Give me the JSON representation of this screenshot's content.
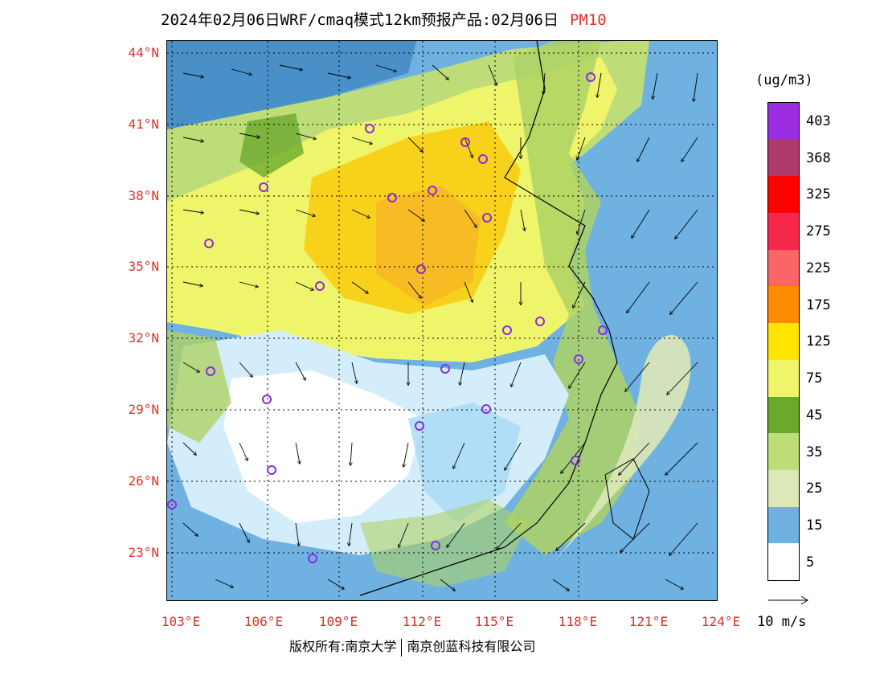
{
  "title": {
    "text": "2024年02月06日WRF/cmaq模式12km预报产品:02月06日",
    "pollutant": "PM10"
  },
  "map": {
    "lat_labels": [
      "44°N",
      "41°N",
      "38°N",
      "35°N",
      "32°N",
      "29°N",
      "26°N",
      "23°N"
    ],
    "lon_labels": [
      "103°E",
      "106°E",
      "109°E",
      "112°E",
      "115°E",
      "118°E",
      "121°E",
      "124°E"
    ]
  },
  "legend": {
    "unit": "(ug/m3)",
    "bins": [
      {
        "color": "#9a2ee0"
      },
      {
        "color": "#ad3a6b"
      },
      {
        "color": "#cf1b7f"
      },
      {
        "color": "#ff0000"
      },
      {
        "color": "#f5284b"
      },
      {
        "color": "#fc6565"
      },
      {
        "color": "#f0562a"
      },
      {
        "color": "#ff8c00"
      },
      {
        "color": "#f6aa2c"
      },
      {
        "color": "#f8d21a"
      },
      {
        "color": "#ffe600"
      },
      {
        "color": "#f1e07a"
      },
      {
        "color": "#eef56a"
      },
      {
        "color": "#6ba92d"
      },
      {
        "color": "#8cc548"
      },
      {
        "color": "#bedd78"
      },
      {
        "color": "#aed265"
      },
      {
        "color": "#dde8b8"
      },
      {
        "color": "#4a90c8"
      },
      {
        "color": "#6fb1e1"
      },
      {
        "color": "#a6d9f5"
      },
      {
        "color": "#d4edfb"
      },
      {
        "color": "#ffffff"
      }
    ],
    "ticks": [
      "403",
      "368",
      "325",
      "275",
      "225",
      "175",
      "125",
      "75",
      "45",
      "35",
      "25",
      "15",
      "5"
    ]
  },
  "wind_key": {
    "label": "10 m/s"
  },
  "copyright": {
    "part1": "版权所有:南京大学",
    "part2": "南京创蓝科技有限公司"
  }
}
